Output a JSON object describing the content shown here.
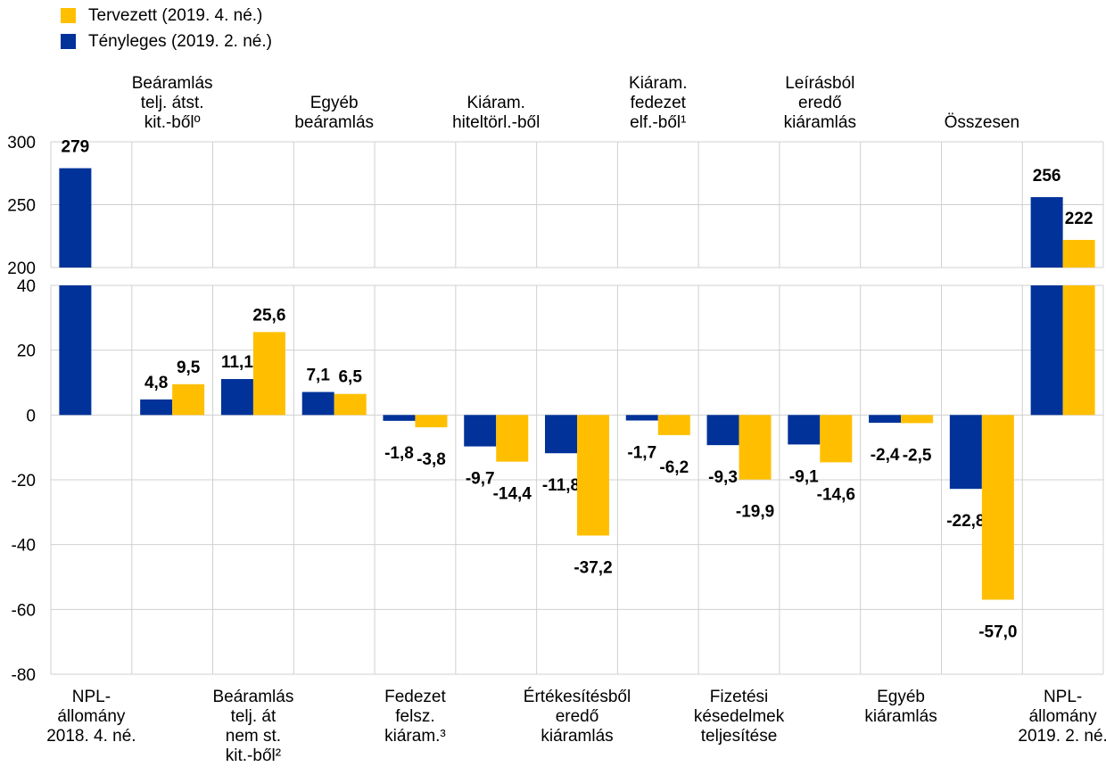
{
  "legend": [
    {
      "name": "Tervezett (2019. 4. né.)",
      "color": "#FFBF00"
    },
    {
      "name": "Tényleges (2019. 2. né.)",
      "color": "#003299"
    }
  ],
  "chart_data": {
    "type": "bar",
    "title": "",
    "xlabel": "",
    "ylabel": "",
    "broken_axis": true,
    "upper_panel": {
      "ylim": [
        200,
        300
      ],
      "ticks": [
        200,
        250,
        300
      ]
    },
    "lower_panel": {
      "ylim": [
        -80,
        40
      ],
      "ticks": [
        -80,
        -60,
        -40,
        -20,
        0,
        20,
        40
      ]
    },
    "categories": [
      [
        "NPL-",
        "állomány",
        "2018. 4. né."
      ],
      [
        "Beáramlás",
        "telj. átst.",
        "kit.-bőlº"
      ],
      [
        "Beáramlás",
        "telj. át",
        "nem st.",
        "kit.-ből²"
      ],
      [
        "Egyéb",
        "beáramlás"
      ],
      [
        "Fedezet",
        "felsz.",
        "kiáram.³"
      ],
      [
        "Kiáram.",
        "hiteltörl.-ből"
      ],
      [
        "Értékesítésből",
        "eredő",
        "kiáramlás"
      ],
      [
        "Kiáram.",
        "fedezet",
        "elf.-ből¹"
      ],
      [
        "Fizetési",
        "késedelmek",
        "teljesítése"
      ],
      [
        "Leírásból",
        "eredő",
        "kiáramlás"
      ],
      [
        "Egyéb",
        "kiáramlás"
      ],
      [
        "Összesen"
      ],
      [
        "NPL-",
        "állomány",
        "2019. 2. né."
      ]
    ],
    "label_position": [
      "bottom",
      "top",
      "bottom",
      "top",
      "bottom",
      "top",
      "bottom",
      "top",
      "bottom",
      "top",
      "bottom",
      "top",
      "bottom"
    ],
    "series": [
      {
        "name": "Tényleges (2019. 2. né.)",
        "color": "#003299",
        "values": [
          279,
          4.8,
          11.1,
          7.1,
          -1.8,
          -9.7,
          -11.8,
          -1.7,
          -9.3,
          -9.1,
          -2.4,
          -22.8,
          256
        ],
        "labels": [
          "279",
          "4,8",
          "11,1",
          "7,1",
          "-1,8",
          "-9,7",
          "-11,8",
          "-1,7",
          "-9,3",
          "-9,1",
          "-2,4",
          "-22,8",
          "256"
        ]
      },
      {
        "name": "Tervezett (2019. 4. né.)",
        "color": "#FFBF00",
        "values": [
          null,
          9.5,
          25.6,
          6.5,
          -3.8,
          -14.4,
          -37.2,
          -6.2,
          -19.9,
          -14.6,
          -2.5,
          -57.0,
          222
        ],
        "labels": [
          null,
          "9,5",
          "25,6",
          "6,5",
          "-3,8",
          "-14,4",
          "-37,2",
          "-6,2",
          "-19,9",
          "-14,6",
          "-2,5",
          "-57,0",
          "222"
        ]
      }
    ]
  }
}
